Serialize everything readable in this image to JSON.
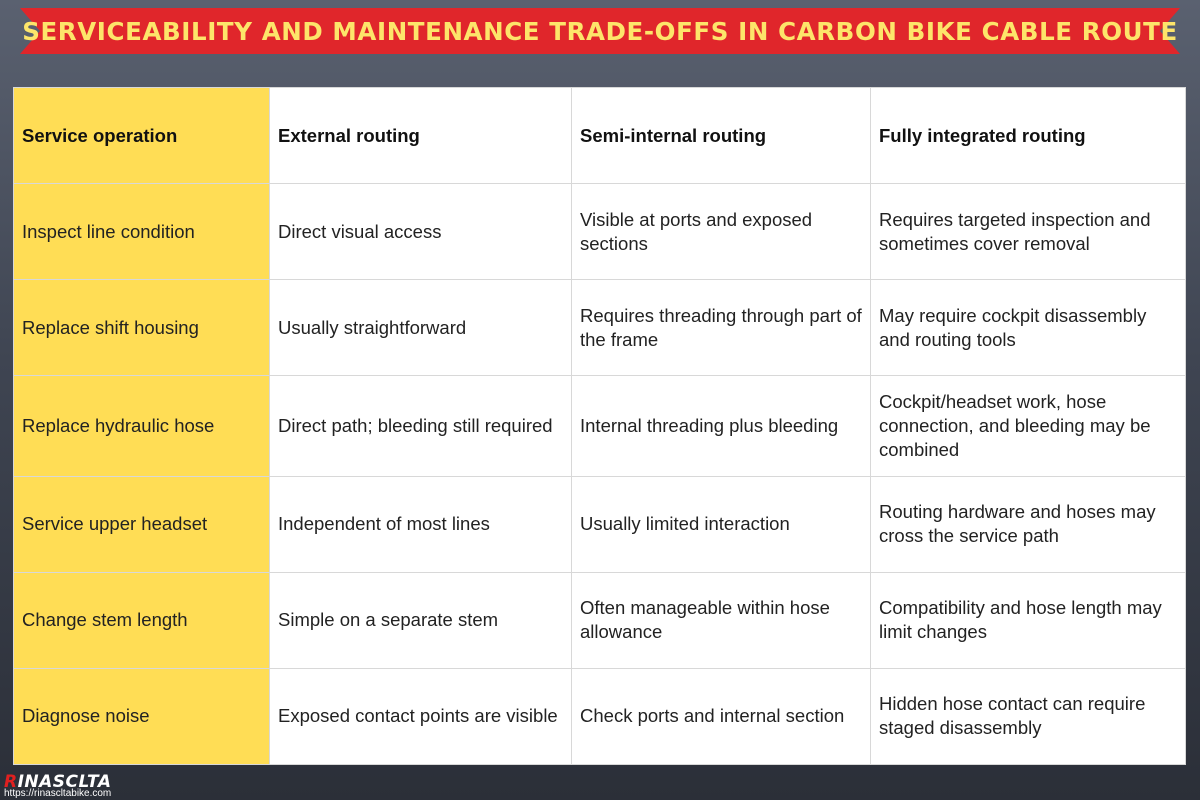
{
  "title": "SERVICEABILITY AND MAINTENANCE TRADE-OFFS IN CARBON BIKE CABLE ROUTE",
  "colors": {
    "banner_red": "#e0262b",
    "banner_text": "#fde56a",
    "first_column": "#ffdd55"
  },
  "table": {
    "headers": [
      "Service operation",
      "External routing",
      "Semi-internal routing",
      "Fully integrated routing"
    ],
    "rows": [
      [
        "Inspect line condition",
        "Direct visual access",
        "Visible at ports and exposed sections",
        "Requires targeted inspection and sometimes cover removal"
      ],
      [
        "Replace shift housing",
        "Usually straightforward",
        "Requires threading through part of the frame",
        "May require cockpit disassembly and routing tools"
      ],
      [
        "Replace hydraulic hose",
        "Direct path; bleeding still required",
        "Internal threading plus bleeding",
        "Cockpit/headset work, hose connection, and bleeding may be combined"
      ],
      [
        "Service upper headset",
        "Independent of most lines",
        "Usually limited interaction",
        "Routing hardware and hoses may cross the service path"
      ],
      [
        "Change stem length",
        "Simple on a separate stem",
        "Often manageable within hose allowance",
        "Compatibility and hose length may limit changes"
      ],
      [
        "Diagnose noise",
        "Exposed contact points are visible",
        "Check ports and internal section",
        "Hidden hose contact can require staged disassembly"
      ]
    ]
  },
  "logo": {
    "name": "RINASCLTA",
    "url": "https://rinascltabike.com"
  }
}
